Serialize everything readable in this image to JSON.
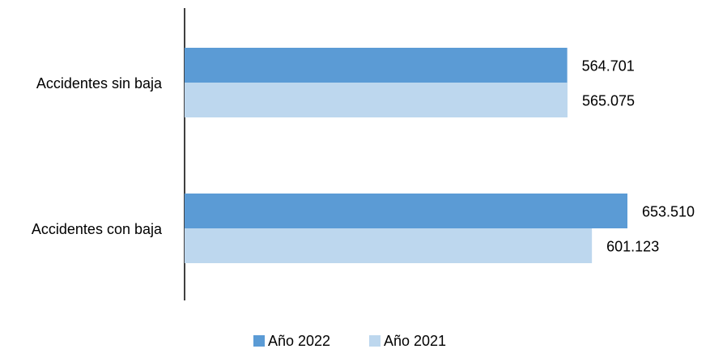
{
  "chart_data": {
    "type": "bar",
    "orientation": "horizontal",
    "categories": [
      "Accidentes sin baja",
      "Accidentes con baja"
    ],
    "series": [
      {
        "name": "Año 2022",
        "color": "#5B9BD5",
        "values": [
          564701,
          653510
        ],
        "labels": [
          "564.701",
          "653.510"
        ]
      },
      {
        "name": "Año 2021",
        "color": "#BDD7EE",
        "values": [
          565075,
          601123
        ],
        "labels": [
          "565.075",
          "601.123"
        ]
      }
    ],
    "title": "",
    "xlabel": "",
    "ylabel": "",
    "xlim": [
      0,
      700000
    ],
    "grid": false,
    "legend_position": "bottom"
  }
}
